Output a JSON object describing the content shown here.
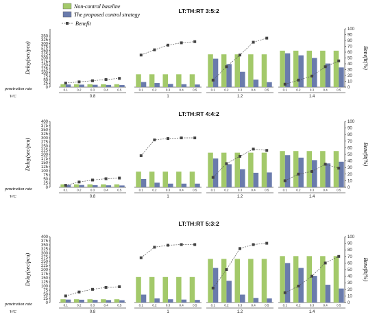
{
  "legend": {
    "position": "top-left",
    "items": [
      {
        "name": "Non-control baseline",
        "color": "#a3c96a",
        "kind": "bar"
      },
      {
        "name": "The proposed control strategy",
        "color": "#6a7bac",
        "kind": "bar"
      },
      {
        "name": "Benefit",
        "color": "#444444",
        "kind": "line"
      }
    ]
  },
  "chart_data": [
    {
      "type": "bar",
      "title": "LT:TH:RT   3:5:2",
      "ylabel": "Delay(sec/pcu)",
      "y2label": "Benefit(%)",
      "xlabel_row1": "penetration rate",
      "xlabel_row2": "V/C",
      "ylim": [
        0,
        400
      ],
      "yticks": [
        0,
        25,
        50,
        75,
        100,
        125,
        150,
        175,
        200,
        225,
        250,
        275,
        300,
        325,
        350
      ],
      "y2lim": [
        0,
        100
      ],
      "y2ticks": [
        0,
        10,
        20,
        30,
        40,
        50,
        60,
        70,
        80,
        90,
        100
      ],
      "groups": [
        "0.8",
        "1",
        "1.2",
        "1.4"
      ],
      "categories": [
        "0.1",
        "0.2",
        "0.3",
        "0.4",
        "0.5"
      ],
      "series": [
        {
          "name": "Non-control baseline",
          "axis": "left",
          "values": [
            [
              20,
              20,
              20,
              20,
              20
            ],
            [
              88,
              88,
              88,
              88,
              88
            ],
            [
              225,
              225,
              225,
              225,
              225
            ],
            [
              250,
              250,
              250,
              250,
              250
            ]
          ]
        },
        {
          "name": "The proposed control strategy",
          "axis": "left",
          "values": [
            [
              18,
              17,
              16,
              15,
              14
            ],
            [
              35,
              28,
              22,
              20,
              18
            ],
            [
              195,
              158,
              105,
              52,
              34
            ],
            [
              232,
              218,
              200,
              162,
              135
            ]
          ]
        },
        {
          "name": "Benefit",
          "axis": "right",
          "type": "line",
          "values": [
            [
              7,
              9,
              11,
              13,
              15
            ],
            [
              55,
              64,
              72,
              76,
              78
            ],
            [
              12,
              35,
              55,
              77,
              84
            ],
            [
              5,
              12,
              19,
              35,
              45
            ]
          ]
        }
      ]
    },
    {
      "type": "bar",
      "title": "LT:TH:RT   4:4:2",
      "ylabel": "Delay(sec/pcu)",
      "y2label": "Benefit(%)",
      "xlabel_row1": "penetration rate",
      "xlabel_row2": "V/C",
      "ylim": [
        0,
        400
      ],
      "yticks": [
        0,
        25,
        50,
        75,
        100,
        125,
        150,
        175,
        200,
        225,
        250,
        275,
        300,
        325,
        350,
        375,
        400
      ],
      "y2lim": [
        0,
        100
      ],
      "y2ticks": [
        0,
        10,
        20,
        30,
        40,
        50,
        60,
        70,
        80,
        90,
        100
      ],
      "groups": [
        "0.8",
        "1",
        "1.2",
        "1.4"
      ],
      "categories": [
        "0.1",
        "0.2",
        "0.3",
        "0.4",
        "0.5"
      ],
      "series": [
        {
          "name": "Non-control baseline",
          "axis": "left",
          "values": [
            [
              18,
              18,
              18,
              18,
              18
            ],
            [
              95,
              95,
              95,
              95,
              95
            ],
            [
              210,
              210,
              210,
              210,
              210
            ],
            [
              220,
              220,
              220,
              220,
              220
            ]
          ]
        },
        {
          "name": "The proposed control strategy",
          "axis": "left",
          "values": [
            [
              15,
              14,
              13,
              12,
              11
            ],
            [
              50,
              28,
              22,
              22,
              22
            ],
            [
              175,
              140,
              110,
              88,
              90
            ],
            [
              195,
              180,
              165,
              145,
              155
            ]
          ]
        },
        {
          "name": "Benefit",
          "axis": "right",
          "type": "line",
          "values": [
            [
              3,
              8,
              11,
              13,
              14
            ],
            [
              48,
              72,
              74,
              75,
              75
            ],
            [
              15,
              36,
              47,
              58,
              56
            ],
            [
              10,
              20,
              24,
              35,
              29
            ]
          ]
        }
      ]
    },
    {
      "type": "bar",
      "title": "LT:TH:RT   5:3:2",
      "ylabel": "Delay(sec/pcu)",
      "y2label": "Benefit(%)",
      "xlabel_row1": "penetration rate",
      "xlabel_row2": "V/C",
      "ylim": [
        0,
        400
      ],
      "yticks": [
        0,
        25,
        50,
        75,
        100,
        125,
        150,
        175,
        200,
        225,
        250,
        275,
        300,
        325,
        350,
        375,
        400
      ],
      "y2lim": [
        0,
        100
      ],
      "y2ticks": [
        0,
        10,
        20,
        30,
        40,
        50,
        60,
        70,
        80,
        90,
        100
      ],
      "groups": [
        "0.8",
        "1",
        "1.2",
        "1.4"
      ],
      "categories": [
        "0.1",
        "0.2",
        "0.3",
        "0.4",
        "0.5"
      ],
      "series": [
        {
          "name": "Non-control baseline",
          "axis": "left",
          "values": [
            [
              20,
              20,
              20,
              20,
              20
            ],
            [
              155,
              155,
              155,
              155,
              155
            ],
            [
              265,
              265,
              265,
              265,
              265
            ],
            [
              282,
              282,
              282,
              282,
              282
            ]
          ]
        },
        {
          "name": "The proposed control strategy",
          "axis": "left",
          "values": [
            [
              18,
              17,
              16,
              15,
              14
            ],
            [
              48,
              25,
              20,
              18,
              16
            ],
            [
              210,
              132,
              48,
              28,
              25
            ],
            [
              240,
              210,
              162,
              108,
              85
            ]
          ]
        },
        {
          "name": "Benefit",
          "axis": "right",
          "type": "line",
          "values": [
            [
              10,
              16,
              20,
              23,
              24
            ],
            [
              68,
              84,
              87,
              88,
              88
            ],
            [
              22,
              50,
              82,
              88,
              90
            ],
            [
              15,
              25,
              40,
              60,
              70
            ]
          ]
        }
      ]
    }
  ]
}
